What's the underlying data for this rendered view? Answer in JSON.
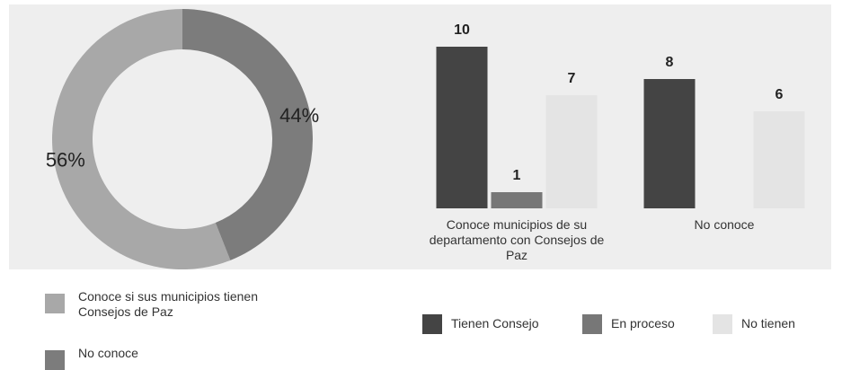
{
  "chart_data": [
    {
      "type": "pie",
      "categories": [
        "Conoce si sus municipios tienen Consejos de Paz",
        "No conoce"
      ],
      "values": [
        56,
        44
      ],
      "value_labels": [
        "56%",
        "44%"
      ],
      "colors": [
        "#a8a8a8",
        "#7c7c7c"
      ]
    },
    {
      "type": "bar",
      "categories": [
        "Conoce municipios de su departamento con Consejos de Paz",
        "No conoce"
      ],
      "series": [
        {
          "name": "Tienen Consejo",
          "color": "#444444",
          "values": [
            10,
            8
          ]
        },
        {
          "name": "En proceso",
          "color": "#777777",
          "values": [
            1,
            null
          ]
        },
        {
          "name": "No tienen",
          "color": "#e4e4e4",
          "values": [
            7,
            6
          ]
        }
      ]
    }
  ]
}
